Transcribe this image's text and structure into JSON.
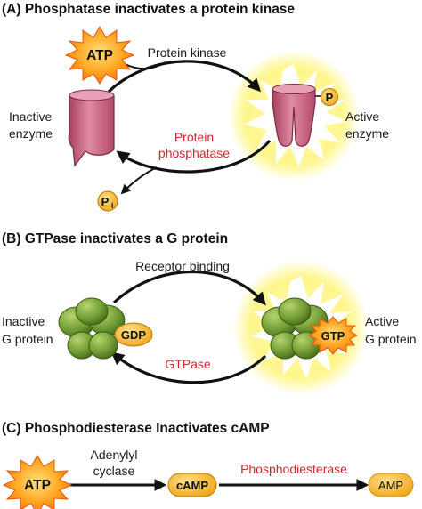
{
  "colors": {
    "arrow": "#111111",
    "enzyme_fill": "#c85a7a",
    "gprotein_fill": "#6f9a33",
    "glow": "#fff36a",
    "starburst": "#ff8a1e",
    "tag_fill": "#f5b21c",
    "enzyme_red_label": "#d6262e"
  },
  "panel_a": {
    "heading": "(A)  Phosphatase inactivates a protein kinase",
    "atp": "ATP",
    "forward_label": "Protein kinase",
    "reverse_label_line1": "Protein",
    "reverse_label_line2": "phosphatase",
    "inactive_line1": "Inactive",
    "inactive_line2": "enzyme",
    "active_line1": "Active",
    "active_line2": "enzyme",
    "phosphate_tag": "P",
    "released_phosphate": "P",
    "released_phosphate_sub": "i"
  },
  "panel_b": {
    "heading": "(B)  GTPase inactivates a G protein",
    "forward_label": "Receptor binding",
    "reverse_label": "GTPase",
    "inactive_line1": "Inactive",
    "inactive_line2": "G protein",
    "active_line1": "Active",
    "active_line2": "G protein",
    "gdp": "GDP",
    "gtp": "GTP"
  },
  "panel_c": {
    "heading": "(C)  Phosphodiesterase Inactivates cAMP",
    "atp": "ATP",
    "step1_line1": "Adenylyl",
    "step1_line2": "cyclase",
    "camp": "cAMP",
    "step2_label": "Phosphodiesterase",
    "amp": "AMP"
  }
}
